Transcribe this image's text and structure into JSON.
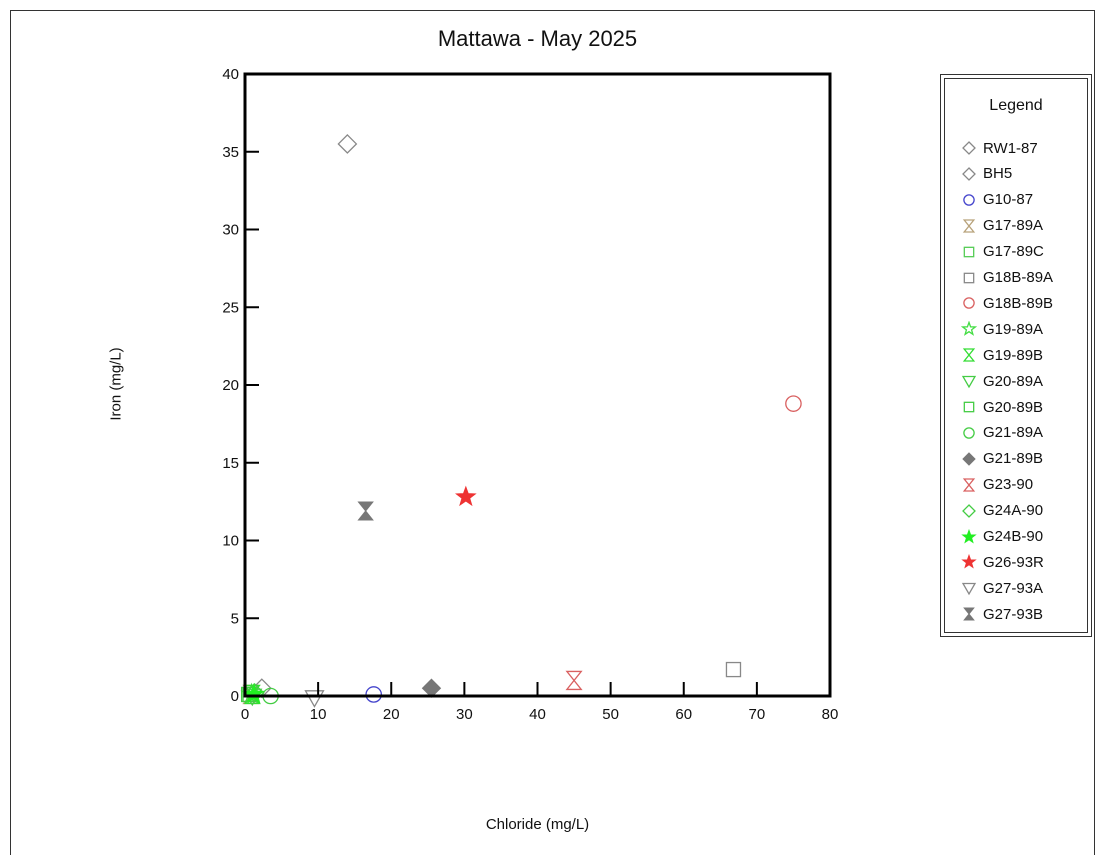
{
  "chart_data": {
    "type": "scatter",
    "title": "Mattawa - May 2025",
    "xlabel": "Chloride (mg/L)",
    "ylabel": "Iron (mg/L)",
    "xlim": [
      0,
      80
    ],
    "ylim": [
      0,
      40
    ],
    "xticks": [
      "0",
      "10",
      "20",
      "30",
      "40",
      "50",
      "60",
      "70",
      "80"
    ],
    "yticks": [
      "0",
      "5",
      "10",
      "15",
      "20",
      "25",
      "30",
      "35",
      "40"
    ],
    "grid": false,
    "legend_title": "Legend",
    "legend_position": "right",
    "series": [
      {
        "name": "RW1-87",
        "marker": "diamond",
        "filled": false,
        "color": "#888888",
        "points": [
          [
            2.3,
            0.5
          ]
        ]
      },
      {
        "name": "BH5",
        "marker": "diamond",
        "filled": false,
        "color": "#888888",
        "points": [
          [
            14,
            35.5
          ]
        ]
      },
      {
        "name": "G10-87",
        "marker": "circle",
        "filled": false,
        "color": "#4444cc",
        "points": [
          [
            17.6,
            0.1
          ]
        ]
      },
      {
        "name": "G17-89A",
        "marker": "hourglass",
        "filled": false,
        "color": "#b8a27a",
        "points": [
          [
            0.8,
            0.1
          ]
        ]
      },
      {
        "name": "G17-89C",
        "marker": "square",
        "filled": false,
        "color": "#55cc55",
        "points": [
          [
            0.7,
            0.1
          ]
        ]
      },
      {
        "name": "G18B-89A",
        "marker": "square",
        "filled": false,
        "color": "#888888",
        "points": [
          [
            66.8,
            1.7
          ]
        ]
      },
      {
        "name": "G18B-89B",
        "marker": "circle",
        "filled": false,
        "color": "#d96060",
        "points": [
          [
            75,
            18.8
          ]
        ]
      },
      {
        "name": "G19-89A",
        "marker": "star",
        "filled": false,
        "color": "#44dd44",
        "points": [
          [
            0.9,
            0.1
          ]
        ]
      },
      {
        "name": "G19-89B",
        "marker": "hourglass",
        "filled": false,
        "color": "#33dd33",
        "points": [
          [
            1.0,
            0.1
          ]
        ]
      },
      {
        "name": "G20-89A",
        "marker": "triangle-down",
        "filled": false,
        "color": "#44cc44",
        "points": [
          [
            1.0,
            0.0
          ]
        ]
      },
      {
        "name": "G20-89B",
        "marker": "square",
        "filled": false,
        "color": "#44cc44",
        "points": [
          [
            0.5,
            0.1
          ]
        ]
      },
      {
        "name": "G21-89A",
        "marker": "circle",
        "filled": false,
        "color": "#44cc44",
        "points": [
          [
            3.5,
            0.0
          ]
        ]
      },
      {
        "name": "G21-89B",
        "marker": "diamond",
        "filled": true,
        "color": "#777777",
        "points": [
          [
            25.5,
            0.5
          ]
        ]
      },
      {
        "name": "G23-90",
        "marker": "hourglass",
        "filled": false,
        "color": "#d96060",
        "points": [
          [
            45,
            1.0
          ]
        ]
      },
      {
        "name": "G24A-90",
        "marker": "diamond",
        "filled": false,
        "color": "#44cc44",
        "points": [
          [
            1.3,
            0.2
          ]
        ]
      },
      {
        "name": "G24B-90",
        "marker": "star",
        "filled": true,
        "color": "#22ee22",
        "points": [
          [
            1.2,
            0.1
          ]
        ]
      },
      {
        "name": "G26-93R",
        "marker": "star",
        "filled": true,
        "color": "#ee3333",
        "points": [
          [
            30.2,
            12.8
          ]
        ]
      },
      {
        "name": "G27-93A",
        "marker": "triangle-down",
        "filled": false,
        "color": "#888888",
        "points": [
          [
            9.5,
            -0.1
          ]
        ]
      },
      {
        "name": "G27-93B",
        "marker": "hourglass",
        "filled": true,
        "color": "#777777",
        "points": [
          [
            16.5,
            11.9
          ]
        ]
      }
    ]
  }
}
